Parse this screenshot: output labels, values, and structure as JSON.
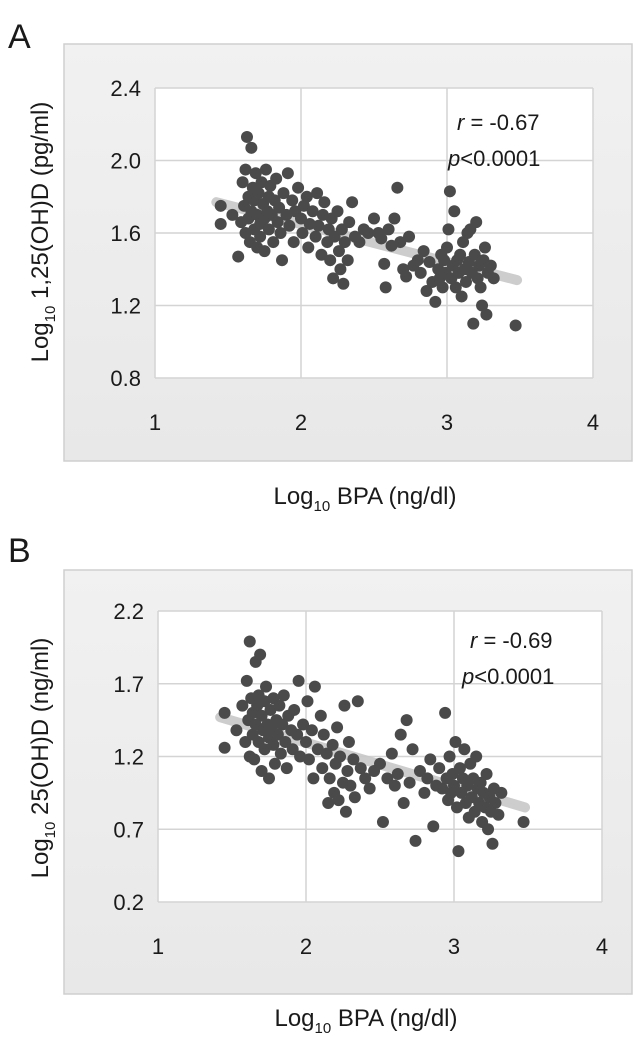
{
  "chart_data": [
    {
      "panel_label": "A",
      "type": "scatter",
      "xlabel": {
        "main": "Log",
        "sub": "10",
        "rest": " BPA (ng/dl)"
      },
      "ylabel": {
        "main": "Log",
        "sub": "10",
        "rest": " 1,25(OH)D (pg/ml)"
      },
      "xlim": [
        1,
        4
      ],
      "ylim": [
        0.8,
        2.4
      ],
      "xticks": [
        1,
        2,
        3,
        4
      ],
      "yticks": [
        0.8,
        1.2,
        1.6,
        2.0,
        2.4
      ],
      "ytick_labels": [
        "0.8",
        "1.2",
        "1.6",
        "2.0",
        "2.4"
      ],
      "grid": true,
      "annotation": {
        "r_label": "r",
        "r_text": " = -0.67",
        "p_label": "p",
        "p_text": "<0.0001"
      },
      "trendline": {
        "x": [
          1.42,
          3.48
        ],
        "y": [
          1.77,
          1.34
        ],
        "color": "#c8c8c8"
      },
      "point_color": "#4a4a4a",
      "points": [
        [
          1.45,
          1.75
        ],
        [
          1.45,
          1.65
        ],
        [
          1.53,
          1.7
        ],
        [
          1.57,
          1.47
        ],
        [
          1.59,
          1.66
        ],
        [
          1.6,
          1.88
        ],
        [
          1.61,
          1.75
        ],
        [
          1.62,
          1.6
        ],
        [
          1.62,
          1.95
        ],
        [
          1.63,
          2.13
        ],
        [
          1.64,
          1.8
        ],
        [
          1.64,
          1.68
        ],
        [
          1.65,
          1.55
        ],
        [
          1.66,
          1.72
        ],
        [
          1.66,
          2.07
        ],
        [
          1.67,
          1.85
        ],
        [
          1.68,
          1.62
        ],
        [
          1.68,
          1.78
        ],
        [
          1.69,
          1.93
        ],
        [
          1.7,
          1.52
        ],
        [
          1.7,
          1.7
        ],
        [
          1.71,
          1.82
        ],
        [
          1.72,
          1.65
        ],
        [
          1.72,
          1.58
        ],
        [
          1.73,
          1.88
        ],
        [
          1.74,
          1.76
        ],
        [
          1.75,
          1.68
        ],
        [
          1.75,
          1.5
        ],
        [
          1.76,
          1.95
        ],
        [
          1.77,
          1.72
        ],
        [
          1.78,
          1.62
        ],
        [
          1.78,
          1.8
        ],
        [
          1.79,
          1.86
        ],
        [
          1.8,
          1.7
        ],
        [
          1.81,
          1.55
        ],
        [
          1.82,
          1.78
        ],
        [
          1.83,
          1.9
        ],
        [
          1.84,
          1.66
        ],
        [
          1.85,
          1.74
        ],
        [
          1.86,
          1.6
        ],
        [
          1.87,
          1.45
        ],
        [
          1.88,
          1.82
        ],
        [
          1.9,
          1.7
        ],
        [
          1.91,
          1.93
        ],
        [
          1.92,
          1.64
        ],
        [
          1.94,
          1.78
        ],
        [
          1.95,
          1.55
        ],
        [
          1.96,
          1.72
        ],
        [
          1.98,
          1.85
        ],
        [
          2.0,
          1.68
        ],
        [
          2.01,
          1.6
        ],
        [
          2.02,
          1.75
        ],
        [
          2.04,
          1.8
        ],
        [
          2.05,
          1.52
        ],
        [
          2.06,
          1.65
        ],
        [
          2.08,
          1.72
        ],
        [
          2.1,
          1.58
        ],
        [
          2.11,
          1.82
        ],
        [
          2.12,
          1.64
        ],
        [
          2.14,
          1.48
        ],
        [
          2.15,
          1.7
        ],
        [
          2.16,
          1.77
        ],
        [
          2.18,
          1.55
        ],
        [
          2.19,
          1.62
        ],
        [
          2.2,
          1.45
        ],
        [
          2.21,
          1.68
        ],
        [
          2.22,
          1.35
        ],
        [
          2.23,
          1.58
        ],
        [
          2.25,
          1.72
        ],
        [
          2.26,
          1.5
        ],
        [
          2.27,
          1.4
        ],
        [
          2.28,
          1.62
        ],
        [
          2.29,
          1.32
        ],
        [
          2.3,
          1.55
        ],
        [
          2.32,
          1.45
        ],
        [
          2.33,
          1.66
        ],
        [
          2.35,
          1.77
        ],
        [
          2.37,
          1.58
        ],
        [
          2.4,
          1.55
        ],
        [
          2.43,
          1.62
        ],
        [
          2.46,
          1.6
        ],
        [
          2.5,
          1.68
        ],
        [
          2.53,
          1.6
        ],
        [
          2.55,
          1.57
        ],
        [
          2.57,
          1.43
        ],
        [
          2.58,
          1.3
        ],
        [
          2.6,
          1.62
        ],
        [
          2.62,
          1.53
        ],
        [
          2.64,
          1.68
        ],
        [
          2.66,
          1.85
        ],
        [
          2.68,
          1.55
        ],
        [
          2.7,
          1.4
        ],
        [
          2.72,
          1.36
        ],
        [
          2.74,
          1.58
        ],
        [
          2.77,
          1.42
        ],
        [
          2.8,
          1.45
        ],
        [
          2.82,
          1.38
        ],
        [
          2.84,
          1.5
        ],
        [
          2.86,
          1.28
        ],
        [
          2.88,
          1.44
        ],
        [
          2.9,
          1.33
        ],
        [
          2.92,
          1.22
        ],
        [
          2.94,
          1.4
        ],
        [
          2.95,
          1.35
        ],
        [
          2.96,
          1.48
        ],
        [
          2.97,
          1.3
        ],
        [
          2.98,
          1.45
        ],
        [
          2.99,
          1.38
        ],
        [
          3.0,
          1.52
        ],
        [
          3.01,
          1.62
        ],
        [
          3.02,
          1.83
        ],
        [
          3.03,
          1.35
        ],
        [
          3.04,
          1.42
        ],
        [
          3.05,
          1.72
        ],
        [
          3.06,
          1.3
        ],
        [
          3.07,
          1.45
        ],
        [
          3.08,
          1.38
        ],
        [
          3.09,
          1.48
        ],
        [
          3.1,
          1.25
        ],
        [
          3.11,
          1.55
        ],
        [
          3.12,
          1.4
        ],
        [
          3.13,
          1.33
        ],
        [
          3.14,
          1.6
        ],
        [
          3.15,
          1.44
        ],
        [
          3.16,
          1.62
        ],
        [
          3.17,
          1.38
        ],
        [
          3.18,
          1.1
        ],
        [
          3.19,
          1.48
        ],
        [
          3.2,
          1.66
        ],
        [
          3.21,
          1.35
        ],
        [
          3.22,
          1.42
        ],
        [
          3.23,
          1.3
        ],
        [
          3.24,
          1.2
        ],
        [
          3.25,
          1.45
        ],
        [
          3.26,
          1.52
        ],
        [
          3.27,
          1.15
        ],
        [
          3.28,
          1.38
        ],
        [
          3.3,
          1.42
        ],
        [
          3.32,
          1.35
        ],
        [
          3.47,
          1.09
        ]
      ]
    },
    {
      "panel_label": "B",
      "type": "scatter",
      "xlabel": {
        "main": "Log",
        "sub": "10",
        "rest": " BPA (ng/dl)"
      },
      "ylabel": {
        "main": "Log",
        "sub": "10",
        "rest": " 25(OH)D (ng/ml)"
      },
      "xlim": [
        1,
        4
      ],
      "ylim": [
        0.2,
        2.2
      ],
      "xticks": [
        1,
        2,
        3,
        4
      ],
      "yticks": [
        0.2,
        0.7,
        1.2,
        1.7,
        2.2
      ],
      "ytick_labels": [
        "0.2",
        "0.7",
        "1.2",
        "1.7",
        "2.2"
      ],
      "grid": true,
      "annotation": {
        "r_label": "r",
        "r_text": " = -0.69",
        "p_label": "p",
        "p_text": "<0.0001"
      },
      "trendline": {
        "x": [
          1.42,
          3.48
        ],
        "y": [
          1.47,
          0.85
        ],
        "color": "#c8c8c8"
      },
      "point_color": "#4a4a4a",
      "points": [
        [
          1.45,
          1.5
        ],
        [
          1.45,
          1.26
        ],
        [
          1.53,
          1.38
        ],
        [
          1.57,
          1.55
        ],
        [
          1.59,
          1.3
        ],
        [
          1.6,
          1.72
        ],
        [
          1.61,
          1.45
        ],
        [
          1.62,
          1.2
        ],
        [
          1.62,
          1.99
        ],
        [
          1.63,
          1.6
        ],
        [
          1.64,
          1.5
        ],
        [
          1.64,
          1.35
        ],
        [
          1.65,
          1.18
        ],
        [
          1.66,
          1.42
        ],
        [
          1.66,
          1.85
        ],
        [
          1.67,
          1.55
        ],
        [
          1.68,
          1.3
        ],
        [
          1.68,
          1.62
        ],
        [
          1.69,
          1.9
        ],
        [
          1.7,
          1.1
        ],
        [
          1.7,
          1.48
        ],
        [
          1.71,
          1.38
        ],
        [
          1.72,
          1.25
        ],
        [
          1.72,
          1.58
        ],
        [
          1.73,
          1.68
        ],
        [
          1.74,
          1.42
        ],
        [
          1.75,
          1.33
        ],
        [
          1.75,
          1.05
        ],
        [
          1.76,
          1.52
        ],
        [
          1.77,
          1.4
        ],
        [
          1.78,
          1.28
        ],
        [
          1.78,
          1.6
        ],
        [
          1.79,
          1.15
        ],
        [
          1.8,
          1.45
        ],
        [
          1.81,
          1.35
        ],
        [
          1.82,
          1.55
        ],
        [
          1.83,
          1.22
        ],
        [
          1.84,
          1.42
        ],
        [
          1.85,
          1.62
        ],
        [
          1.86,
          1.3
        ],
        [
          1.87,
          1.12
        ],
        [
          1.88,
          1.48
        ],
        [
          1.9,
          1.38
        ],
        [
          1.91,
          1.25
        ],
        [
          1.92,
          1.52
        ],
        [
          1.94,
          1.35
        ],
        [
          1.95,
          1.72
        ],
        [
          1.96,
          1.2
        ],
        [
          1.98,
          1.42
        ],
        [
          2.0,
          1.3
        ],
        [
          2.01,
          1.58
        ],
        [
          2.02,
          1.18
        ],
        [
          2.04,
          1.38
        ],
        [
          2.05,
          1.05
        ],
        [
          2.06,
          1.68
        ],
        [
          2.08,
          1.25
        ],
        [
          2.1,
          1.48
        ],
        [
          2.11,
          1.12
        ],
        [
          2.12,
          1.35
        ],
        [
          2.14,
          1.22
        ],
        [
          2.15,
          0.88
        ],
        [
          2.16,
          1.05
        ],
        [
          2.18,
          1.28
        ],
        [
          2.19,
          0.95
        ],
        [
          2.2,
          1.15
        ],
        [
          2.21,
          1.4
        ],
        [
          2.22,
          0.9
        ],
        [
          2.23,
          1.2
        ],
        [
          2.25,
          1.02
        ],
        [
          2.26,
          1.55
        ],
        [
          2.27,
          0.82
        ],
        [
          2.28,
          1.1
        ],
        [
          2.29,
          1.3
        ],
        [
          2.3,
          1.0
        ],
        [
          2.32,
          1.18
        ],
        [
          2.33,
          0.92
        ],
        [
          2.35,
          1.58
        ],
        [
          2.37,
          1.12
        ],
        [
          2.4,
          1.05
        ],
        [
          2.43,
          0.98
        ],
        [
          2.46,
          1.1
        ],
        [
          2.5,
          1.15
        ],
        [
          2.52,
          0.75
        ],
        [
          2.55,
          1.05
        ],
        [
          2.58,
          1.22
        ],
        [
          2.6,
          1.0
        ],
        [
          2.62,
          1.08
        ],
        [
          2.64,
          1.35
        ],
        [
          2.66,
          0.88
        ],
        [
          2.68,
          1.45
        ],
        [
          2.7,
          1.02
        ],
        [
          2.72,
          1.25
        ],
        [
          2.74,
          0.62
        ],
        [
          2.77,
          1.1
        ],
        [
          2.8,
          0.95
        ],
        [
          2.82,
          1.05
        ],
        [
          2.84,
          1.18
        ],
        [
          2.86,
          0.72
        ],
        [
          2.88,
          1.0
        ],
        [
          2.9,
          1.12
        ],
        [
          2.92,
          0.98
        ],
        [
          2.94,
          1.5
        ],
        [
          2.95,
          1.05
        ],
        [
          2.96,
          0.9
        ],
        [
          2.97,
          1.2
        ],
        [
          2.98,
          0.95
        ],
        [
          2.99,
          1.08
        ],
        [
          3.0,
          1.0
        ],
        [
          3.01,
          1.3
        ],
        [
          3.02,
          0.85
        ],
        [
          3.03,
          0.55
        ],
        [
          3.04,
          1.12
        ],
        [
          3.05,
          0.95
        ],
        [
          3.06,
          1.05
        ],
        [
          3.07,
          1.25
        ],
        [
          3.08,
          0.88
        ],
        [
          3.09,
          1.0
        ],
        [
          3.1,
          0.78
        ],
        [
          3.11,
          1.15
        ],
        [
          3.12,
          0.92
        ],
        [
          3.13,
          1.05
        ],
        [
          3.14,
          0.82
        ],
        [
          3.15,
          1.2
        ],
        [
          3.16,
          0.98
        ],
        [
          3.17,
          0.88
        ],
        [
          3.18,
          1.02
        ],
        [
          3.19,
          0.75
        ],
        [
          3.2,
          0.95
        ],
        [
          3.21,
          0.85
        ],
        [
          3.22,
          1.08
        ],
        [
          3.23,
          0.7
        ],
        [
          3.24,
          0.92
        ],
        [
          3.25,
          0.82
        ],
        [
          3.26,
          0.6
        ],
        [
          3.27,
          0.98
        ],
        [
          3.28,
          0.88
        ],
        [
          3.3,
          0.8
        ],
        [
          3.32,
          0.95
        ],
        [
          3.47,
          0.75
        ]
      ]
    }
  ]
}
